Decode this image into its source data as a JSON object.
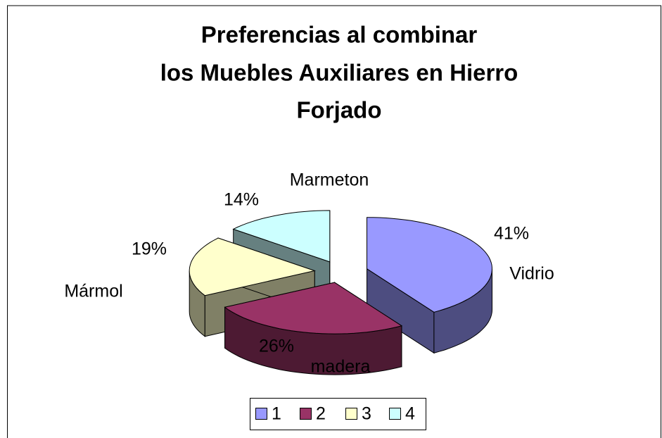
{
  "chart_data": {
    "type": "pie3d",
    "title": [
      "Preferencias al combinar",
      "los Muebles Auxiliares en Hierro",
      "Forjado"
    ],
    "categories": [
      "Vidrio",
      "madera",
      "Mármol",
      "Marmeton"
    ],
    "values": [
      41,
      26,
      19,
      14
    ],
    "value_labels": [
      "41%",
      "26%",
      "19%",
      "14%"
    ],
    "colors": [
      "#9999ff",
      "#993366",
      "#ffffcc",
      "#ccffff"
    ],
    "legend": [
      "1",
      "2",
      "3",
      "4"
    ]
  }
}
